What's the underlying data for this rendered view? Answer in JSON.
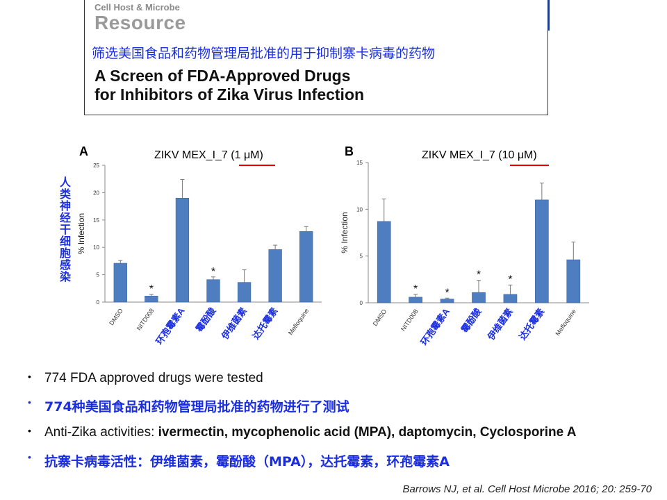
{
  "header": {
    "journal": "Cell Host & Microbe",
    "section": "Resource",
    "title_cn": "筛选美国食品和药物管理局批准的用于抑制寨卡病毒的药物",
    "title_en_line1": "A Screen of FDA-Approved Drugs",
    "title_en_line2": "for Inhibitors of Zika Virus Infection"
  },
  "side_label_cn": "人类神经干细胞感染",
  "chart_data": [
    {
      "type": "bar",
      "panel": "A",
      "title": "ZIKV MEX_I_7 (1 μM)",
      "ylabel": "% Infection",
      "ylim": [
        0,
        25
      ],
      "yticks": [
        0,
        5,
        10,
        15,
        20,
        25
      ],
      "categories": [
        "DMSO",
        "NITD008",
        "环孢霉素A",
        "霉酚酸",
        "伊维菌素",
        "达托霉素",
        "Mefloquine"
      ],
      "category_cn": [
        false,
        false,
        true,
        true,
        true,
        true,
        false
      ],
      "values": [
        7.1,
        1.1,
        19.0,
        4.1,
        3.6,
        9.6,
        12.9
      ],
      "errors": [
        0.5,
        0.3,
        3.4,
        0.5,
        2.3,
        0.8,
        0.9
      ],
      "significant": [
        false,
        true,
        false,
        true,
        false,
        false,
        false
      ],
      "bar_color": "#4f7ec0"
    },
    {
      "type": "bar",
      "panel": "B",
      "title": "ZIKV MEX_I_7 (10 μM)",
      "ylabel": "% Infection",
      "ylim": [
        0,
        15
      ],
      "yticks": [
        0,
        5,
        10,
        15
      ],
      "categories": [
        "DMSO",
        "NITD008",
        "环孢霉素A",
        "霉酚酸",
        "伊维菌素",
        "达托霉素",
        "Mefloquine"
      ],
      "category_cn": [
        false,
        false,
        true,
        true,
        true,
        true,
        false
      ],
      "values": [
        8.7,
        0.6,
        0.4,
        1.1,
        0.9,
        11.0,
        4.6
      ],
      "errors": [
        2.4,
        0.3,
        0.1,
        1.3,
        1.0,
        1.8,
        1.9
      ],
      "significant": [
        false,
        true,
        true,
        true,
        true,
        false,
        false
      ],
      "bar_color": "#4f7ec0"
    }
  ],
  "bullets": [
    {
      "text": "774 FDA approved drugs were tested"
    },
    {
      "text": "774种美国食品和药物管理局批准的药物进行了测试"
    },
    {
      "prefix": "Anti-Zika activities: ",
      "bold": "ivermectin, mycophenolic acid (MPA), daptomycin, Cyclosporine A"
    },
    {
      "text": "抗寨卡病毒活性：伊维菌素，霉酚酸（MPA），达托霉素，环孢霉素A"
    }
  ],
  "citation": "Barrows NJ, et al. Cell Host Microbe 2016; 20: 259-70",
  "colors": {
    "accent_blue": "#1a2ee0",
    "highlight_red": "#e00000",
    "bar": "#4f7ec0"
  }
}
